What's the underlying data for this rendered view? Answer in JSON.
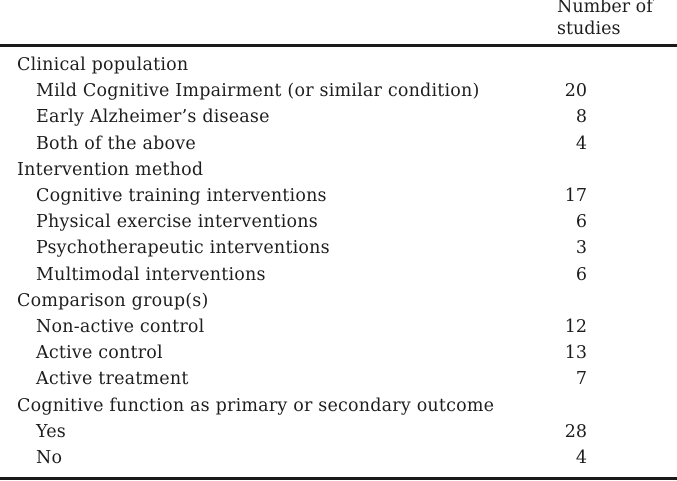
{
  "page": {
    "background": "#ffffff",
    "text_color": "#1d1d1d",
    "rule_color": "#1a1a1a"
  },
  "table": {
    "header": {
      "value_col_line1": "Number of",
      "value_col_line2": "studies"
    },
    "rows": [
      {
        "label": "Clinical population",
        "value": ""
      },
      {
        "label": "Mild Cognitive Impairment (or similar condition)",
        "value": "20"
      },
      {
        "label": "Early Alzheimer’s disease",
        "value": "8"
      },
      {
        "label": "Both of the above",
        "value": "4"
      },
      {
        "label": "Intervention method",
        "value": ""
      },
      {
        "label": "Cognitive training interventions",
        "value": "17"
      },
      {
        "label": "Physical exercise interventions",
        "value": "6"
      },
      {
        "label": "Psychotherapeutic interventions",
        "value": "3"
      },
      {
        "label": "Multimodal interventions",
        "value": "6"
      },
      {
        "label": "Comparison group(s)",
        "value": ""
      },
      {
        "label": "Non-active control",
        "value": "12"
      },
      {
        "label": "Active control",
        "value": "13"
      },
      {
        "label": "Active treatment",
        "value": "7"
      },
      {
        "label": "Cognitive function as primary or secondary outcome",
        "value": ""
      },
      {
        "label": "Yes",
        "value": "28"
      },
      {
        "label": "No",
        "value": "4"
      }
    ]
  }
}
